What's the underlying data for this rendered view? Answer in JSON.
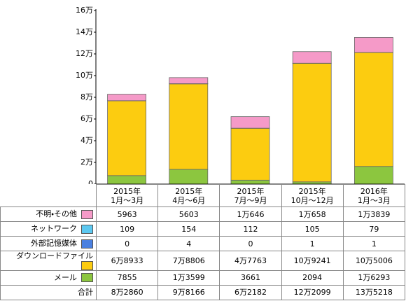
{
  "chart_data": {
    "type": "stacked_bar",
    "categories": [
      "2015年\n1月～3月",
      "2015年\n4月～6月",
      "2015年\n7月～9月",
      "2015年\n10月～12月",
      "2016年\n1月～3月"
    ],
    "series": [
      {
        "name": "不明・その他",
        "color": "#f59ac8",
        "values": [
          5963,
          5603,
          10646,
          10658,
          13839
        ],
        "value_labels": [
          "5963",
          "5603",
          "1万646",
          "1万658",
          "1万3839"
        ]
      },
      {
        "name": "ネットワーク",
        "color": "#5cc8f0",
        "values": [
          109,
          154,
          112,
          105,
          79
        ],
        "value_labels": [
          "109",
          "154",
          "112",
          "105",
          "79"
        ]
      },
      {
        "name": "外部記憶媒体",
        "color": "#4a80e0",
        "values": [
          0,
          4,
          0,
          1,
          1
        ],
        "value_labels": [
          "0",
          "4",
          "0",
          "1",
          "1"
        ]
      },
      {
        "name": "ダウンロードファイル",
        "color": "#fccc10",
        "values": [
          68933,
          78806,
          47763,
          109241,
          105006
        ],
        "value_labels": [
          "6万8933",
          "7万8806",
          "4万7763",
          "10万9241",
          "10万5006"
        ]
      },
      {
        "name": "メール",
        "color": "#8cc63f",
        "values": [
          7855,
          13599,
          3661,
          2094,
          16293
        ],
        "value_labels": [
          "7855",
          "1万3599",
          "3661",
          "2094",
          "1万6293"
        ]
      }
    ],
    "totals": {
      "name": "合計",
      "values": [
        82860,
        98166,
        62182,
        122099,
        135218
      ],
      "value_labels": [
        "8万2860",
        "9万8166",
        "6万2182",
        "12万2099",
        "13万5218"
      ]
    },
    "ylim": [
      0,
      160000
    ],
    "yticks": [
      0,
      {
        "value": 20000,
        "label": "2万"
      },
      {
        "value": 40000,
        "label": "4万"
      },
      {
        "value": 60000,
        "label": "6万"
      },
      {
        "value": 80000,
        "label": "8万"
      },
      {
        "value": 100000,
        "label": "10万"
      },
      {
        "value": 120000,
        "label": "12万"
      },
      {
        "value": 140000,
        "label": "14万"
      },
      {
        "value": 160000,
        "label": "16万"
      }
    ],
    "grid": false
  }
}
